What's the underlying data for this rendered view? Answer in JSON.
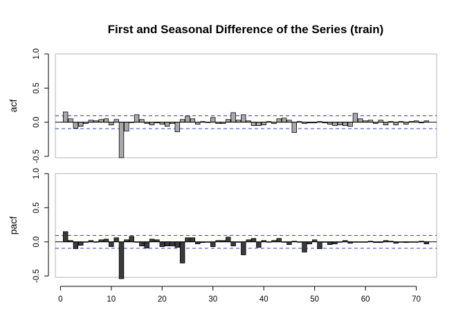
{
  "chart_data": {
    "type": "bar",
    "title": "First and Seasonal Difference of the Series (train)",
    "x_range": [
      -1,
      74
    ],
    "x_ticks": [
      0,
      10,
      20,
      30,
      40,
      50,
      60,
      70
    ],
    "y_ticks": [
      -0.5,
      0.0,
      0.5,
      1.0
    ],
    "ylim": [
      -0.52,
      1.0
    ],
    "grid": false,
    "legend": "none",
    "panels": [
      {
        "ylabel": "acf",
        "fill_color": "#a8a8a8",
        "confidence_bound": 0.094,
        "lags": [
          1,
          2,
          3,
          4,
          5,
          6,
          7,
          8,
          9,
          10,
          11,
          12,
          13,
          14,
          15,
          16,
          17,
          18,
          19,
          20,
          21,
          22,
          23,
          24,
          25,
          26,
          27,
          28,
          29,
          30,
          31,
          32,
          33,
          34,
          35,
          36,
          37,
          38,
          39,
          40,
          41,
          42,
          43,
          44,
          45,
          46,
          47,
          48,
          49,
          50,
          51,
          52,
          53,
          54,
          55,
          56,
          57,
          58,
          59,
          60,
          61,
          62,
          63,
          64,
          65,
          66,
          67,
          68,
          69,
          70,
          71,
          72
        ],
        "values": [
          0.15,
          0.05,
          -0.09,
          -0.06,
          -0.02,
          0.03,
          0.02,
          0.04,
          0.05,
          -0.04,
          0.04,
          -0.52,
          -0.13,
          0.0,
          0.11,
          0.04,
          -0.02,
          -0.04,
          -0.01,
          -0.03,
          -0.06,
          -0.02,
          -0.14,
          0.04,
          0.09,
          0.05,
          -0.03,
          0.01,
          0.0,
          0.07,
          -0.02,
          -0.02,
          0.04,
          0.14,
          0.03,
          0.11,
          0.02,
          -0.05,
          -0.05,
          -0.04,
          0.01,
          -0.02,
          0.05,
          0.06,
          0.03,
          -0.15,
          0.01,
          -0.02,
          -0.01,
          -0.01,
          0.01,
          -0.01,
          -0.03,
          -0.05,
          -0.04,
          -0.05,
          -0.06,
          0.13,
          0.05,
          0.02,
          0.03,
          -0.02,
          0.03,
          -0.04,
          0.01,
          -0.04,
          0.01,
          -0.03,
          0.01,
          0.02,
          -0.01,
          0.02
        ]
      },
      {
        "ylabel": "pacf",
        "fill_color": "#3a3a3a",
        "confidence_bound": 0.094,
        "lags": [
          1,
          2,
          3,
          4,
          5,
          6,
          7,
          8,
          9,
          10,
          11,
          12,
          13,
          14,
          15,
          16,
          17,
          18,
          19,
          20,
          21,
          22,
          23,
          24,
          25,
          26,
          27,
          28,
          29,
          30,
          31,
          32,
          33,
          34,
          35,
          36,
          37,
          38,
          39,
          40,
          41,
          42,
          43,
          44,
          45,
          46,
          47,
          48,
          49,
          50,
          51,
          52,
          53,
          54,
          55,
          56,
          57,
          58,
          59,
          60,
          61,
          62,
          63,
          64,
          65,
          66,
          67,
          68,
          69,
          70,
          71,
          72
        ],
        "values": [
          0.15,
          0.02,
          -0.1,
          -0.05,
          0.0,
          0.02,
          0.0,
          0.03,
          0.04,
          -0.07,
          0.06,
          -0.54,
          0.03,
          0.08,
          0.0,
          -0.06,
          -0.09,
          0.04,
          0.03,
          -0.07,
          -0.06,
          -0.06,
          -0.08,
          -0.31,
          0.06,
          0.06,
          -0.03,
          -0.01,
          0.0,
          -0.07,
          0.02,
          0.02,
          0.07,
          -0.06,
          0.0,
          -0.19,
          0.03,
          0.05,
          -0.08,
          0.02,
          0.0,
          0.02,
          0.05,
          0.0,
          -0.04,
          0.01,
          0.0,
          -0.15,
          -0.03,
          0.03,
          -0.1,
          0.0,
          -0.04,
          -0.03,
          0.0,
          0.02,
          -0.02,
          0.0,
          0.0,
          0.0,
          0.01,
          -0.01,
          -0.01,
          0.02,
          0.01,
          -0.02,
          0.0,
          -0.01,
          0.0,
          0.0,
          0.01,
          -0.03
        ]
      }
    ]
  }
}
